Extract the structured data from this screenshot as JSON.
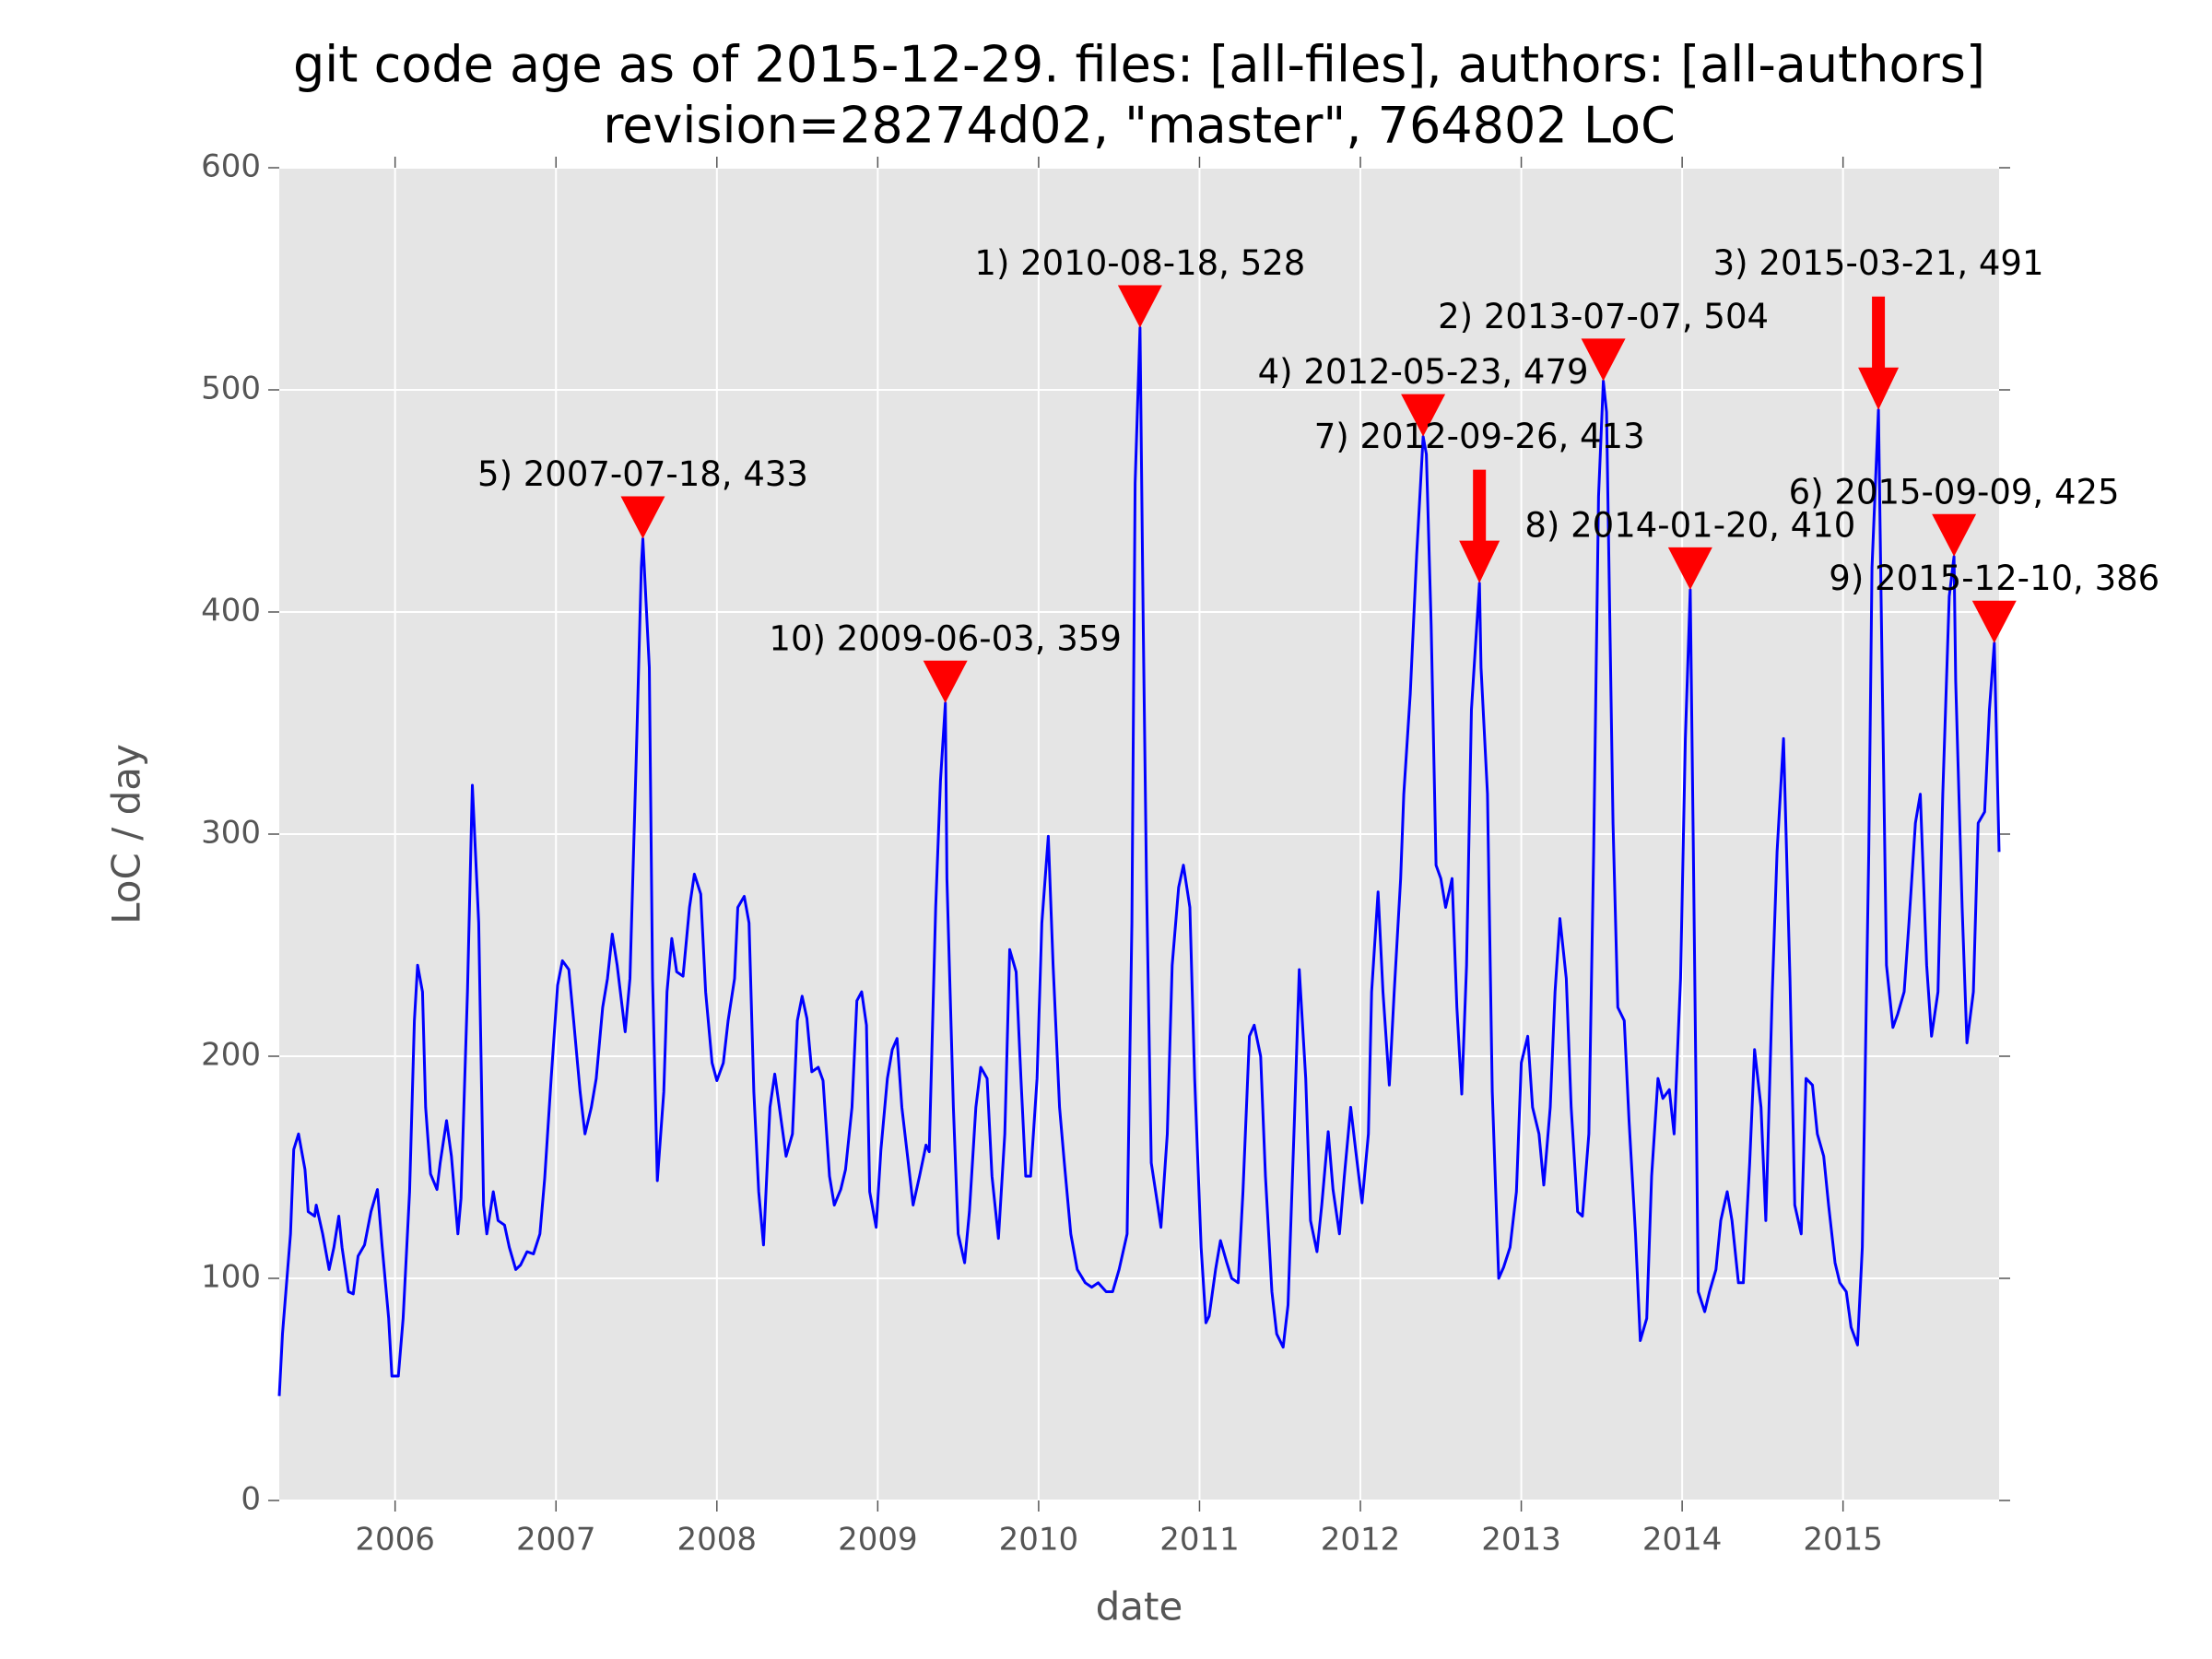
{
  "chart_data": {
    "type": "line",
    "title": "git code age as of 2015-12-29. files: [all-files], authors: [all-authors]",
    "subtitle": "revision=28274d02, \"master\", 764802 LoC",
    "xlabel": "date",
    "ylabel": "LoC / day",
    "color": "#0000ff",
    "marker_color": "#ff0000",
    "grid": true,
    "xlim": [
      2005.28,
      2015.97
    ],
    "xticks": [
      2006,
      2007,
      2008,
      2009,
      2010,
      2011,
      2012,
      2013,
      2014,
      2015
    ],
    "ylim": [
      0,
      600
    ],
    "yticks": [
      0,
      100,
      200,
      300,
      400,
      500,
      600
    ],
    "x": [
      2005.28,
      2005.3,
      2005.35,
      2005.37,
      2005.4,
      2005.44,
      2005.46,
      2005.5,
      2005.51,
      2005.55,
      2005.59,
      2005.62,
      2005.65,
      2005.67,
      2005.71,
      2005.74,
      2005.77,
      2005.81,
      2005.85,
      2005.89,
      2005.92,
      2005.96,
      2005.98,
      2006.02,
      2006.05,
      2006.09,
      2006.12,
      2006.14,
      2006.17,
      2006.19,
      2006.22,
      2006.26,
      2006.28,
      2006.32,
      2006.35,
      2006.39,
      2006.41,
      2006.45,
      2006.48,
      2006.52,
      2006.55,
      2006.57,
      2006.61,
      2006.64,
      2006.68,
      2006.71,
      2006.75,
      2006.78,
      2006.82,
      2006.86,
      2006.9,
      2006.93,
      2006.97,
      2007.01,
      2007.04,
      2007.08,
      2007.11,
      2007.15,
      2007.18,
      2007.22,
      2007.25,
      2007.29,
      2007.32,
      2007.35,
      2007.38,
      2007.43,
      2007.46,
      2007.5,
      2007.53,
      2007.54,
      2007.58,
      2007.6,
      2007.63,
      2007.67,
      2007.69,
      2007.72,
      2007.75,
      2007.79,
      2007.83,
      2007.86,
      2007.9,
      2007.93,
      2007.97,
      2008.0,
      2008.04,
      2008.07,
      2008.11,
      2008.13,
      2008.17,
      2008.2,
      2008.23,
      2008.26,
      2008.29,
      2008.33,
      2008.36,
      2008.4,
      2008.43,
      2008.47,
      2008.5,
      2008.53,
      2008.56,
      2008.59,
      2008.63,
      2008.66,
      2008.7,
      2008.73,
      2008.77,
      2008.8,
      2008.84,
      2008.87,
      2008.9,
      2008.93,
      2008.95,
      2008.99,
      2009.02,
      2009.06,
      2009.09,
      2009.12,
      2009.15,
      2009.19,
      2009.22,
      2009.26,
      2009.3,
      2009.32,
      2009.36,
      2009.39,
      2009.42,
      2009.43,
      2009.47,
      2009.5,
      2009.54,
      2009.57,
      2009.61,
      2009.64,
      2009.68,
      2009.71,
      2009.75,
      2009.79,
      2009.82,
      2009.86,
      2009.89,
      2009.92,
      2009.95,
      2009.99,
      2010.02,
      2010.06,
      2010.09,
      2010.13,
      2010.16,
      2010.2,
      2010.24,
      2010.29,
      2010.33,
      2010.37,
      2010.42,
      2010.46,
      2010.5,
      2010.55,
      2010.58,
      2010.6,
      2010.63,
      2010.65,
      2010.67,
      2010.7,
      2010.74,
      2010.76,
      2010.8,
      2010.83,
      2010.87,
      2010.9,
      2010.94,
      2010.97,
      2011.01,
      2011.04,
      2011.06,
      2011.1,
      2011.13,
      2011.17,
      2011.2,
      2011.24,
      2011.27,
      2011.31,
      2011.34,
      2011.38,
      2011.41,
      2011.45,
      2011.48,
      2011.52,
      2011.55,
      2011.59,
      2011.62,
      2011.66,
      2011.69,
      2011.73,
      2011.76,
      2011.8,
      2011.83,
      2011.87,
      2011.9,
      2011.94,
      2011.97,
      2012.01,
      2012.05,
      2012.07,
      2012.11,
      2012.14,
      2012.18,
      2012.21,
      2012.25,
      2012.27,
      2012.31,
      2012.35,
      2012.39,
      2012.41,
      2012.44,
      2012.47,
      2012.5,
      2012.53,
      2012.57,
      2012.6,
      2012.63,
      2012.66,
      2012.69,
      2012.74,
      2012.75,
      2012.79,
      2012.82,
      2012.86,
      2012.89,
      2012.93,
      2012.97,
      2013.0,
      2013.04,
      2013.07,
      2013.11,
      2013.14,
      2013.18,
      2013.21,
      2013.24,
      2013.28,
      2013.31,
      2013.35,
      2013.38,
      2013.42,
      2013.45,
      2013.48,
      2013.51,
      2013.53,
      2013.57,
      2013.6,
      2013.64,
      2013.67,
      2013.71,
      2013.74,
      2013.78,
      2013.81,
      2013.85,
      2013.88,
      2013.92,
      2013.95,
      2013.99,
      2014.02,
      2014.05,
      2014.07,
      2014.1,
      2014.14,
      2014.17,
      2014.21,
      2014.24,
      2014.28,
      2014.31,
      2014.35,
      2014.38,
      2014.42,
      2014.45,
      2014.49,
      2014.52,
      2014.56,
      2014.59,
      2014.63,
      2014.67,
      2014.7,
      2014.74,
      2014.77,
      2014.81,
      2014.84,
      2014.88,
      2014.91,
      2014.95,
      2014.98,
      2015.02,
      2015.05,
      2015.09,
      2015.12,
      2015.16,
      2015.18,
      2015.22,
      2015.24,
      2015.27,
      2015.31,
      2015.34,
      2015.38,
      2015.41,
      2015.45,
      2015.48,
      2015.52,
      2015.55,
      2015.59,
      2015.62,
      2015.66,
      2015.69,
      2015.7,
      2015.74,
      2015.77,
      2015.81,
      2015.84,
      2015.88,
      2015.91,
      2015.94,
      2015.97
    ],
    "values": [
      47,
      75,
      120,
      158,
      165,
      149,
      130,
      128,
      133,
      120,
      104,
      114,
      128,
      114,
      94,
      93,
      110,
      115,
      130,
      140,
      114,
      82,
      56,
      56,
      82,
      139,
      216,
      241,
      229,
      177,
      147,
      140,
      152,
      171,
      155,
      120,
      136,
      229,
      322,
      260,
      133,
      120,
      139,
      126,
      124,
      114,
      104,
      106,
      112,
      111,
      120,
      145,
      190,
      232,
      243,
      239,
      216,
      184,
      165,
      177,
      190,
      222,
      235,
      255,
      241,
      211,
      235,
      337,
      420,
      433,
      375,
      235,
      144,
      184,
      229,
      253,
      238,
      236,
      267,
      282,
      273,
      229,
      197,
      189,
      197,
      216,
      235,
      267,
      272,
      260,
      184,
      139,
      115,
      177,
      192,
      171,
      155,
      165,
      216,
      227,
      217,
      193,
      195,
      189,
      146,
      133,
      140,
      149,
      177,
      225,
      229,
      214,
      139,
      123,
      158,
      190,
      203,
      208,
      177,
      152,
      133,
      146,
      160,
      157,
      267,
      324,
      359,
      280,
      177,
      120,
      107,
      130,
      177,
      195,
      190,
      146,
      118,
      165,
      248,
      238,
      190,
      146,
      146,
      190,
      260,
      299,
      241,
      177,
      152,
      120,
      104,
      98,
      96,
      98,
      94,
      94,
      104,
      120,
      260,
      458,
      528,
      394,
      280,
      152,
      133,
      123,
      165,
      241,
      276,
      286,
      267,
      190,
      114,
      80,
      83,
      104,
      117,
      107,
      100,
      98,
      139,
      209,
      214,
      200,
      146,
      94,
      75,
      69,
      88,
      171,
      239,
      190,
      126,
      112,
      133,
      166,
      140,
      120,
      146,
      177,
      158,
      134,
      165,
      229,
      274,
      229,
      187,
      229,
      280,
      318,
      363,
      426,
      479,
      471,
      394,
      286,
      280,
      267,
      280,
      222,
      183,
      241,
      356,
      413,
      375,
      318,
      184,
      100,
      105,
      114,
      139,
      197,
      209,
      177,
      165,
      142,
      177,
      229,
      262,
      235,
      177,
      130,
      128,
      165,
      292,
      452,
      504,
      490,
      305,
      222,
      216,
      171,
      120,
      72,
      82,
      146,
      190,
      181,
      185,
      165,
      235,
      343,
      410,
      292,
      94,
      85,
      94,
      104,
      126,
      139,
      126,
      98,
      98,
      152,
      203,
      177,
      126,
      229,
      292,
      343,
      235,
      133,
      120,
      190,
      187,
      165,
      155,
      133,
      107,
      98,
      94,
      78,
      70,
      114,
      292,
      420,
      491,
      388,
      241,
      213,
      219,
      229,
      260,
      305,
      318,
      241,
      209,
      229,
      318,
      407,
      425,
      369,
      267,
      206,
      229,
      305,
      310,
      356,
      386,
      292
    ],
    "annotations": [
      {
        "label": "1) 2010-08-18, 528",
        "x": 2010.63,
        "y": 528,
        "marker": "triangle"
      },
      {
        "label": "2) 2013-07-07, 504",
        "x": 2013.51,
        "y": 504,
        "marker": "triangle"
      },
      {
        "label": "3) 2015-03-21, 491",
        "x": 2015.22,
        "y": 491,
        "marker": "arrow"
      },
      {
        "label": "4) 2012-05-23, 479",
        "x": 2012.39,
        "y": 479,
        "marker": "triangle"
      },
      {
        "label": "5) 2007-07-18, 433",
        "x": 2007.54,
        "y": 433,
        "marker": "triangle"
      },
      {
        "label": "6) 2015-09-09, 425",
        "x": 2015.69,
        "y": 425,
        "marker": "triangle"
      },
      {
        "label": "7) 2012-09-26, 413",
        "x": 2012.74,
        "y": 413,
        "marker": "arrow"
      },
      {
        "label": "8) 2014-01-20, 410",
        "x": 2014.05,
        "y": 410,
        "marker": "triangle"
      },
      {
        "label": "9) 2015-12-10, 386",
        "x": 2015.94,
        "y": 386,
        "marker": "triangle"
      },
      {
        "label": "10) 2009-06-03, 359",
        "x": 2009.42,
        "y": 359,
        "marker": "triangle"
      }
    ]
  }
}
